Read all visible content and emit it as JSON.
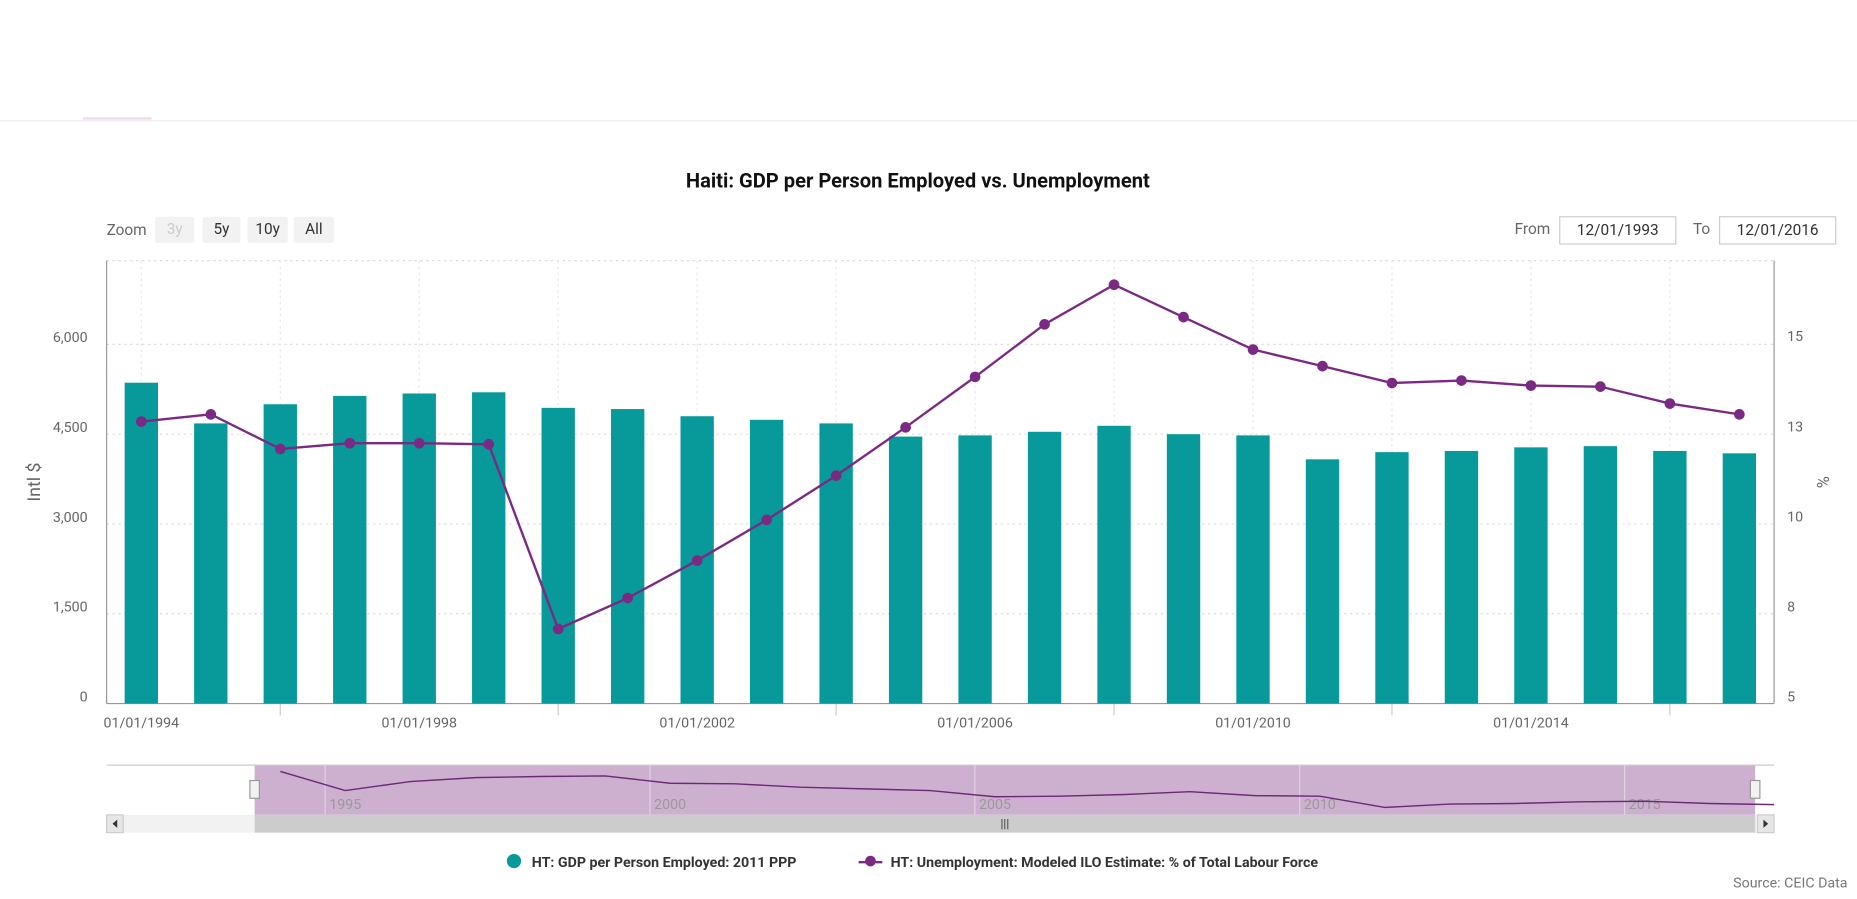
{
  "chart_data": {
    "type": "combo",
    "title": "Haiti: GDP per Person Employed vs. Unemployment",
    "zoom": {
      "label": "Zoom",
      "buttons": [
        "3y",
        "5y",
        "10y",
        "All"
      ]
    },
    "range": {
      "from_label": "From",
      "from": "12/01/1993",
      "to_label": "To",
      "to": "12/01/2016"
    },
    "ylabel": "Intl $",
    "y2label": "%",
    "categories": [
      "01/01/1994",
      null,
      null,
      null,
      "01/01/1998",
      null,
      null,
      null,
      "01/01/2002",
      null,
      null,
      null,
      "01/01/2006",
      null,
      null,
      null,
      "01/01/2010",
      null,
      null,
      null,
      "01/01/2014",
      null,
      null,
      null
    ],
    "series": [
      {
        "name": "HT: GDP per Person Employed: 2011 PPP",
        "type": "bar",
        "color": "#08999a",
        "values": [
          5360,
          4680,
          5000,
          5140,
          5180,
          5200,
          4940,
          4920,
          4800,
          4740,
          4680,
          4460,
          4480,
          4540,
          4640,
          4500,
          4480,
          4080,
          4200,
          4220,
          4280,
          4300,
          4220,
          4180
        ]
      },
      {
        "name": "HT: Unemployment: Modeled ILO Estimate: % of Total Labour Force",
        "type": "line",
        "axis": "y2",
        "color": "#7b2a83",
        "values": [
          12.83,
          13.03,
          12.07,
          12.23,
          12.23,
          12.2,
          7.07,
          7.93,
          8.97,
          10.1,
          11.33,
          12.67,
          14.07,
          15.53,
          16.63,
          15.73,
          14.83,
          14.37,
          13.9,
          13.97,
          13.83,
          13.8,
          13.33,
          13.03
        ]
      }
    ],
    "ylim": [
      0,
      7400
    ],
    "yticks": [
      0,
      {
        "value": 1500,
        "label": "1,500"
      },
      {
        "value": 3000,
        "label": "3,000"
      },
      {
        "value": 4500,
        "label": "4,500"
      },
      {
        "value": 6000,
        "label": "6,000"
      }
    ],
    "y2lim": [
      5,
      17.3
    ],
    "y2ticks": [
      5,
      {
        "value": 7.5,
        "label": "8"
      },
      10,
      {
        "value": 12.5,
        "label": "13"
      },
      15
    ],
    "grid": true,
    "legend": "bottom",
    "navigator": {
      "xlim": [
        1991.6,
        2016.7
      ],
      "ylim": [
        3900,
        5500
      ],
      "xticks": [
        1995,
        2000,
        2005,
        2010,
        2015
      ]
    },
    "source": "Source: CEIC Data"
  }
}
